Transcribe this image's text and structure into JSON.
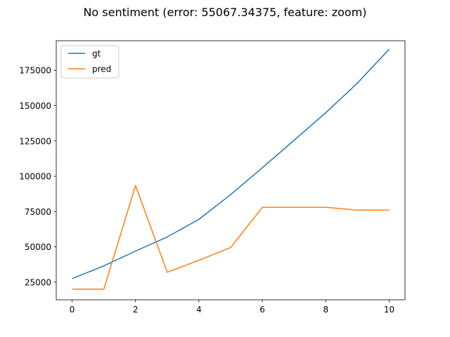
{
  "chart_data": {
    "type": "line",
    "title": "No sentiment (error: 55067.34375, feature: zoom)",
    "xlabel": "",
    "ylabel": "",
    "xlim": [
      -0.5,
      10.5
    ],
    "ylim": [
      12500,
      196000
    ],
    "xticks": [
      0,
      2,
      4,
      6,
      8,
      10
    ],
    "yticks": [
      25000,
      50000,
      75000,
      100000,
      125000,
      150000,
      175000
    ],
    "grid": false,
    "legend_position": "top-left",
    "x": [
      0,
      1,
      2,
      3,
      4,
      5,
      6,
      7,
      8,
      9,
      10
    ],
    "series": [
      {
        "name": "gt",
        "color": "#1f77b4",
        "values": [
          27500,
          36500,
          47000,
          57000,
          69500,
          87000,
          106000,
          125500,
          145000,
          166000,
          190000
        ]
      },
      {
        "name": "pred",
        "color": "#ff7f0e",
        "values": [
          20000,
          20000,
          93500,
          32000,
          40500,
          49500,
          78000,
          78000,
          78000,
          76000,
          76000
        ]
      }
    ]
  }
}
